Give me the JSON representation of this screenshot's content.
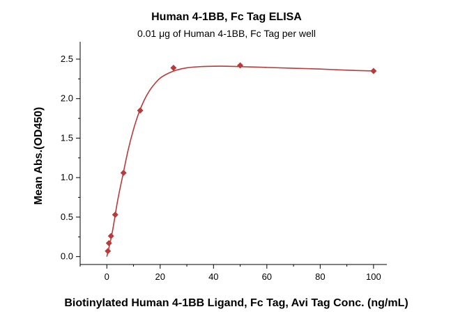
{
  "chart_data": {
    "type": "scatter",
    "title": "Human 4-1BB, Fc Tag ELISA",
    "subtitle": "0.01 μg of Human 4-1BB, Fc Tag per well",
    "xlabel": "Biotinylated Human 4-1BB Ligand, Fc Tag, Avi Tag Conc. (ng/mL)",
    "ylabel": "Mean Abs.(OD450)",
    "xlim": [
      -10,
      105
    ],
    "ylim": [
      -0.1,
      2.72
    ],
    "x_ticks": [
      0,
      20,
      40,
      60,
      80,
      100
    ],
    "y_ticks": [
      0.0,
      0.5,
      1.0,
      1.5,
      2.0,
      2.5
    ],
    "x_tick_labels": [
      "0",
      "20",
      "40",
      "60",
      "80",
      "100"
    ],
    "y_tick_labels": [
      "0.0",
      "0.5",
      "1.0",
      "1.5",
      "2.0",
      "2.5"
    ],
    "grid": false,
    "legend": "none",
    "series": [
      {
        "marker": "diamond",
        "color": "#b83a3a",
        "x": [
          0.39,
          0.78,
          1.56,
          3.13,
          6.25,
          12.5,
          25,
          50,
          100
        ],
        "y": [
          0.07,
          0.17,
          0.26,
          0.53,
          1.06,
          1.85,
          2.39,
          2.42,
          2.35
        ]
      }
    ],
    "fit_curve": {
      "color": "#b83a3a",
      "x": [
        0,
        2,
        4,
        6,
        8,
        10,
        12,
        14,
        16,
        18,
        20,
        23,
        26,
        30,
        35,
        40,
        45,
        50,
        60,
        70,
        80,
        90,
        100
      ],
      "y": [
        0.0,
        0.3,
        0.7,
        1.03,
        1.35,
        1.61,
        1.82,
        1.98,
        2.1,
        2.19,
        2.26,
        2.32,
        2.36,
        2.39,
        2.405,
        2.41,
        2.41,
        2.405,
        2.395,
        2.385,
        2.375,
        2.36,
        2.35
      ]
    }
  }
}
